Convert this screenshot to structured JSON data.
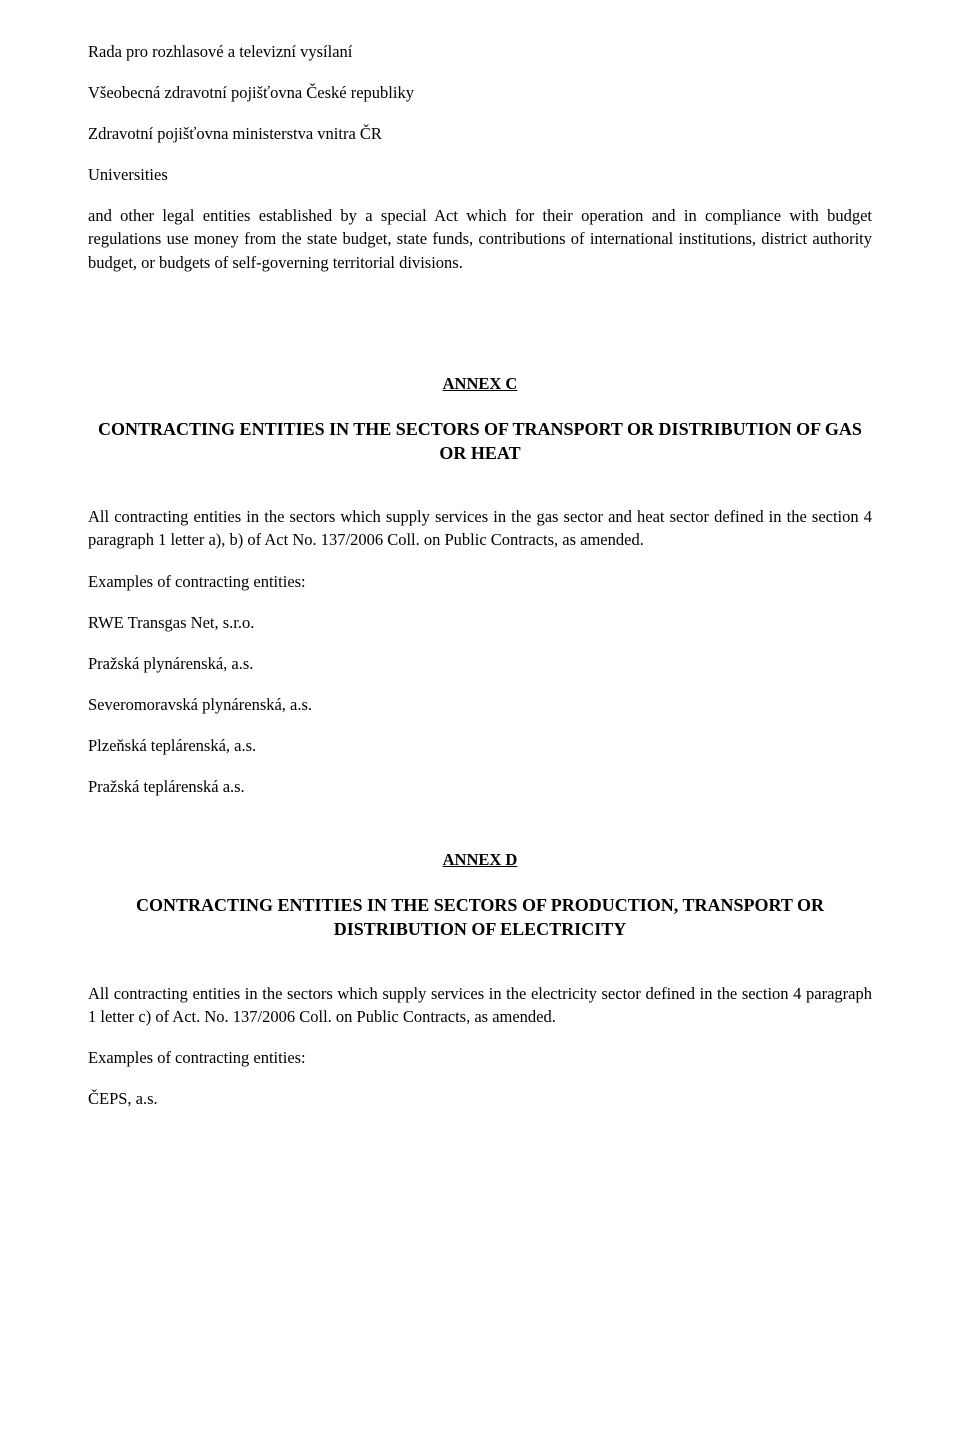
{
  "intro": {
    "line1": "Rada pro rozhlasové a televizní vysílaní",
    "line2": "Všeobecná zdravotní pojišťovna České republiky",
    "line3": "Zdravotní pojišťovna ministerstva vnitra ČR",
    "line4": "Universities",
    "para": "and other legal entities established by a special Act which for their operation and in compliance with budget regulations use money from the state budget, state funds, contributions of international institutions, district authority budget, or budgets of self-governing territorial divisions."
  },
  "annexC": {
    "label": "ANNEX C",
    "title": "CONTRACTING ENTITIES IN THE SECTORS OF TRANSPORT OR DISTRIBUTION OF GAS OR HEAT",
    "para": "All contracting entities in the sectors which supply services in the gas sector and heat sector defined in the section 4 paragraph 1 letter a), b) of Act No. 137/2006 Coll. on Public Contracts, as amended.",
    "examples_label": "Examples of contracting entities:",
    "examples": [
      "RWE Transgas Net, s.r.o.",
      "Pražská plynárenská, a.s.",
      "Severomoravská plynárenská, a.s.",
      "Plzeňská teplárenská, a.s.",
      "Pražská teplárenská a.s."
    ]
  },
  "annexD": {
    "label": "ANNEX D",
    "title": "CONTRACTING ENTITIES IN THE SECTORS OF PRODUCTION, TRANSPORT OR DISTRIBUTION OF ELECTRICITY",
    "para": "All contracting entities in the sectors which supply services in the electricity sector defined in the section 4 paragraph 1 letter c) of Act. No. 137/2006 Coll. on Public Contracts, as amended.",
    "examples_label": "Examples of contracting entities:",
    "examples": [
      "ČEPS, a.s."
    ]
  },
  "colors": {
    "background": "#ffffff",
    "text": "#000000"
  },
  "typography": {
    "font_family": "Times New Roman",
    "body_fontsize_pt": 12,
    "heading_fontsize_pt": 13
  }
}
